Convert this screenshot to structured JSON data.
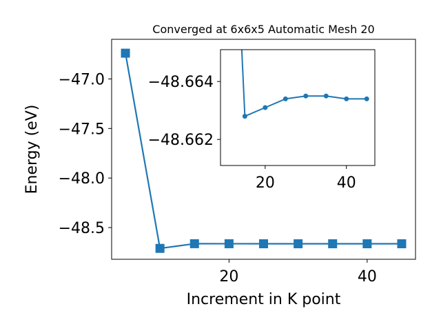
{
  "chart_data": [
    {
      "type": "line",
      "title": "Converged at 6x6x5 Automatic Mesh 20",
      "xlabel": "Increment in K point",
      "ylabel": "Energy (eV)",
      "xlim": [
        3,
        47
      ],
      "ylim": [
        -48.82,
        -46.6
      ],
      "xticks": [
        20,
        40
      ],
      "yticks": [
        -47.0,
        -47.5,
        -48.0,
        -48.5
      ],
      "xtick_labels": [
        "20",
        "40"
      ],
      "ytick_labels": [
        "−47.0",
        "−47.5",
        "−48.0",
        "−48.5"
      ],
      "grid": false,
      "color": "#1f77b4",
      "marker": "square",
      "series": [
        {
          "x": [
            5,
            10,
            15,
            20,
            25,
            30,
            35,
            40,
            45
          ],
          "y": [
            -46.74,
            -48.71,
            -48.6628,
            -48.6631,
            -48.6634,
            -48.6635,
            -48.6635,
            -48.6634,
            -48.6634
          ]
        }
      ]
    },
    {
      "type": "line",
      "role": "inset",
      "title": "",
      "xlabel": "",
      "ylabel": "",
      "xlim": [
        9,
        47
      ],
      "ylim": [
        -48.6611,
        -48.6651
      ],
      "xticks": [
        20,
        40
      ],
      "yticks": [
        -48.664,
        -48.662
      ],
      "xtick_labels": [
        "20",
        "40"
      ],
      "ytick_labels": [
        "−48.664",
        "−48.662"
      ],
      "grid": false,
      "color": "#1f77b4",
      "marker": "circle",
      "series": [
        {
          "x": [
            14.1,
            15,
            20,
            25,
            30,
            35,
            40,
            45
          ],
          "y": [
            -48.6655,
            -48.6628,
            -48.6631,
            -48.6634,
            -48.6635,
            -48.6635,
            -48.6634,
            -48.6634
          ]
        }
      ]
    }
  ]
}
